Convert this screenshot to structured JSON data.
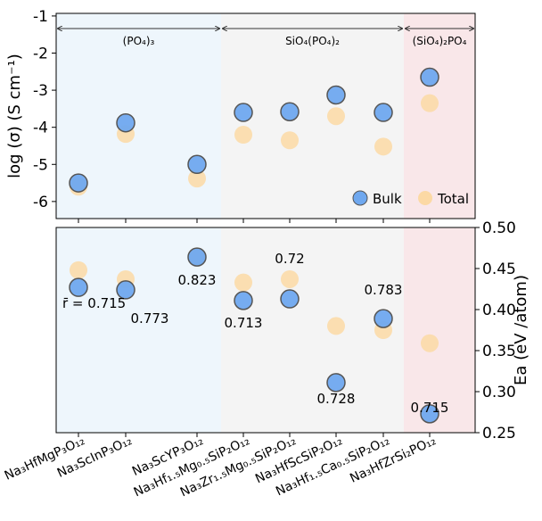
{
  "chart_data": [
    {
      "type": "scatter",
      "ylabel": "log (σ) (S cm⁻¹)",
      "ylim": [
        -6.46,
        -0.93
      ],
      "yticks": [
        -1,
        -2,
        -3,
        -4,
        -5,
        -6
      ],
      "regions": [
        {
          "label": "(PO₄)₃",
          "color": "#eef6fc"
        },
        {
          "label": "SiO₄(PO₄)₂",
          "color": "#f4f4f4"
        },
        {
          "label": "(SiO₄)₂PO₄",
          "color": "#f9e7e9"
        }
      ],
      "legend": "lower right",
      "series": [
        {
          "name": "Bulk",
          "color": "#6fa8ef",
          "values": [
            -5.5,
            -3.88,
            -5.0,
            -3.6,
            -3.58,
            -3.13,
            -3.6,
            -2.65
          ]
        },
        {
          "name": "Total",
          "color": "#fcd9a4",
          "values": [
            -5.6,
            -4.18,
            -5.38,
            -4.2,
            -4.35,
            -3.7,
            -4.52,
            -3.35
          ]
        }
      ]
    },
    {
      "type": "scatter",
      "ylabel": "Ea (eV /atom)",
      "categories": [
        "Na₃HfMgP₃O₁₂",
        "Na₃ScInP₃O₁₂",
        "Na₃ScYP₃O₁₂",
        "Na₃Hf₁.₅Mg₀.₅SiP₂O₁₂",
        "Na₃Zr₁.₅Mg₀.₅SiP₂O₁₂",
        "Na₃HfScSiP₂O₁₂",
        "Na₃Hf₁.₅Ca₀.₅SiP₂O₁₂",
        "Na₃HfZrSi₂PO₁₂"
      ],
      "ylim": [
        0.25,
        0.5
      ],
      "yticks": [
        {
          "value": 0.25,
          "label": "0.25"
        },
        {
          "value": 0.3,
          "label": "0.30"
        },
        {
          "value": 0.35,
          "label": "0.35"
        },
        {
          "value": 0.4,
          "label": "0.40"
        },
        {
          "value": 0.45,
          "label": "0.45"
        },
        {
          "value": 0.5,
          "label": "0.50"
        }
      ],
      "annotations": [
        "r̄ = 0.715",
        "0.773",
        "0.823",
        "0.713",
        "0.72",
        "0.728",
        "0.783",
        "0.715"
      ],
      "series": [
        {
          "name": "Bulk",
          "color": "#6fa8ef",
          "values": [
            0.427,
            0.424,
            0.464,
            0.411,
            0.413,
            0.311,
            0.389,
            0.273
          ]
        },
        {
          "name": "Total",
          "color": "#fcd9a4",
          "values": [
            0.448,
            0.437,
            0.465,
            0.433,
            0.437,
            0.38,
            0.375,
            0.359
          ]
        }
      ]
    }
  ]
}
